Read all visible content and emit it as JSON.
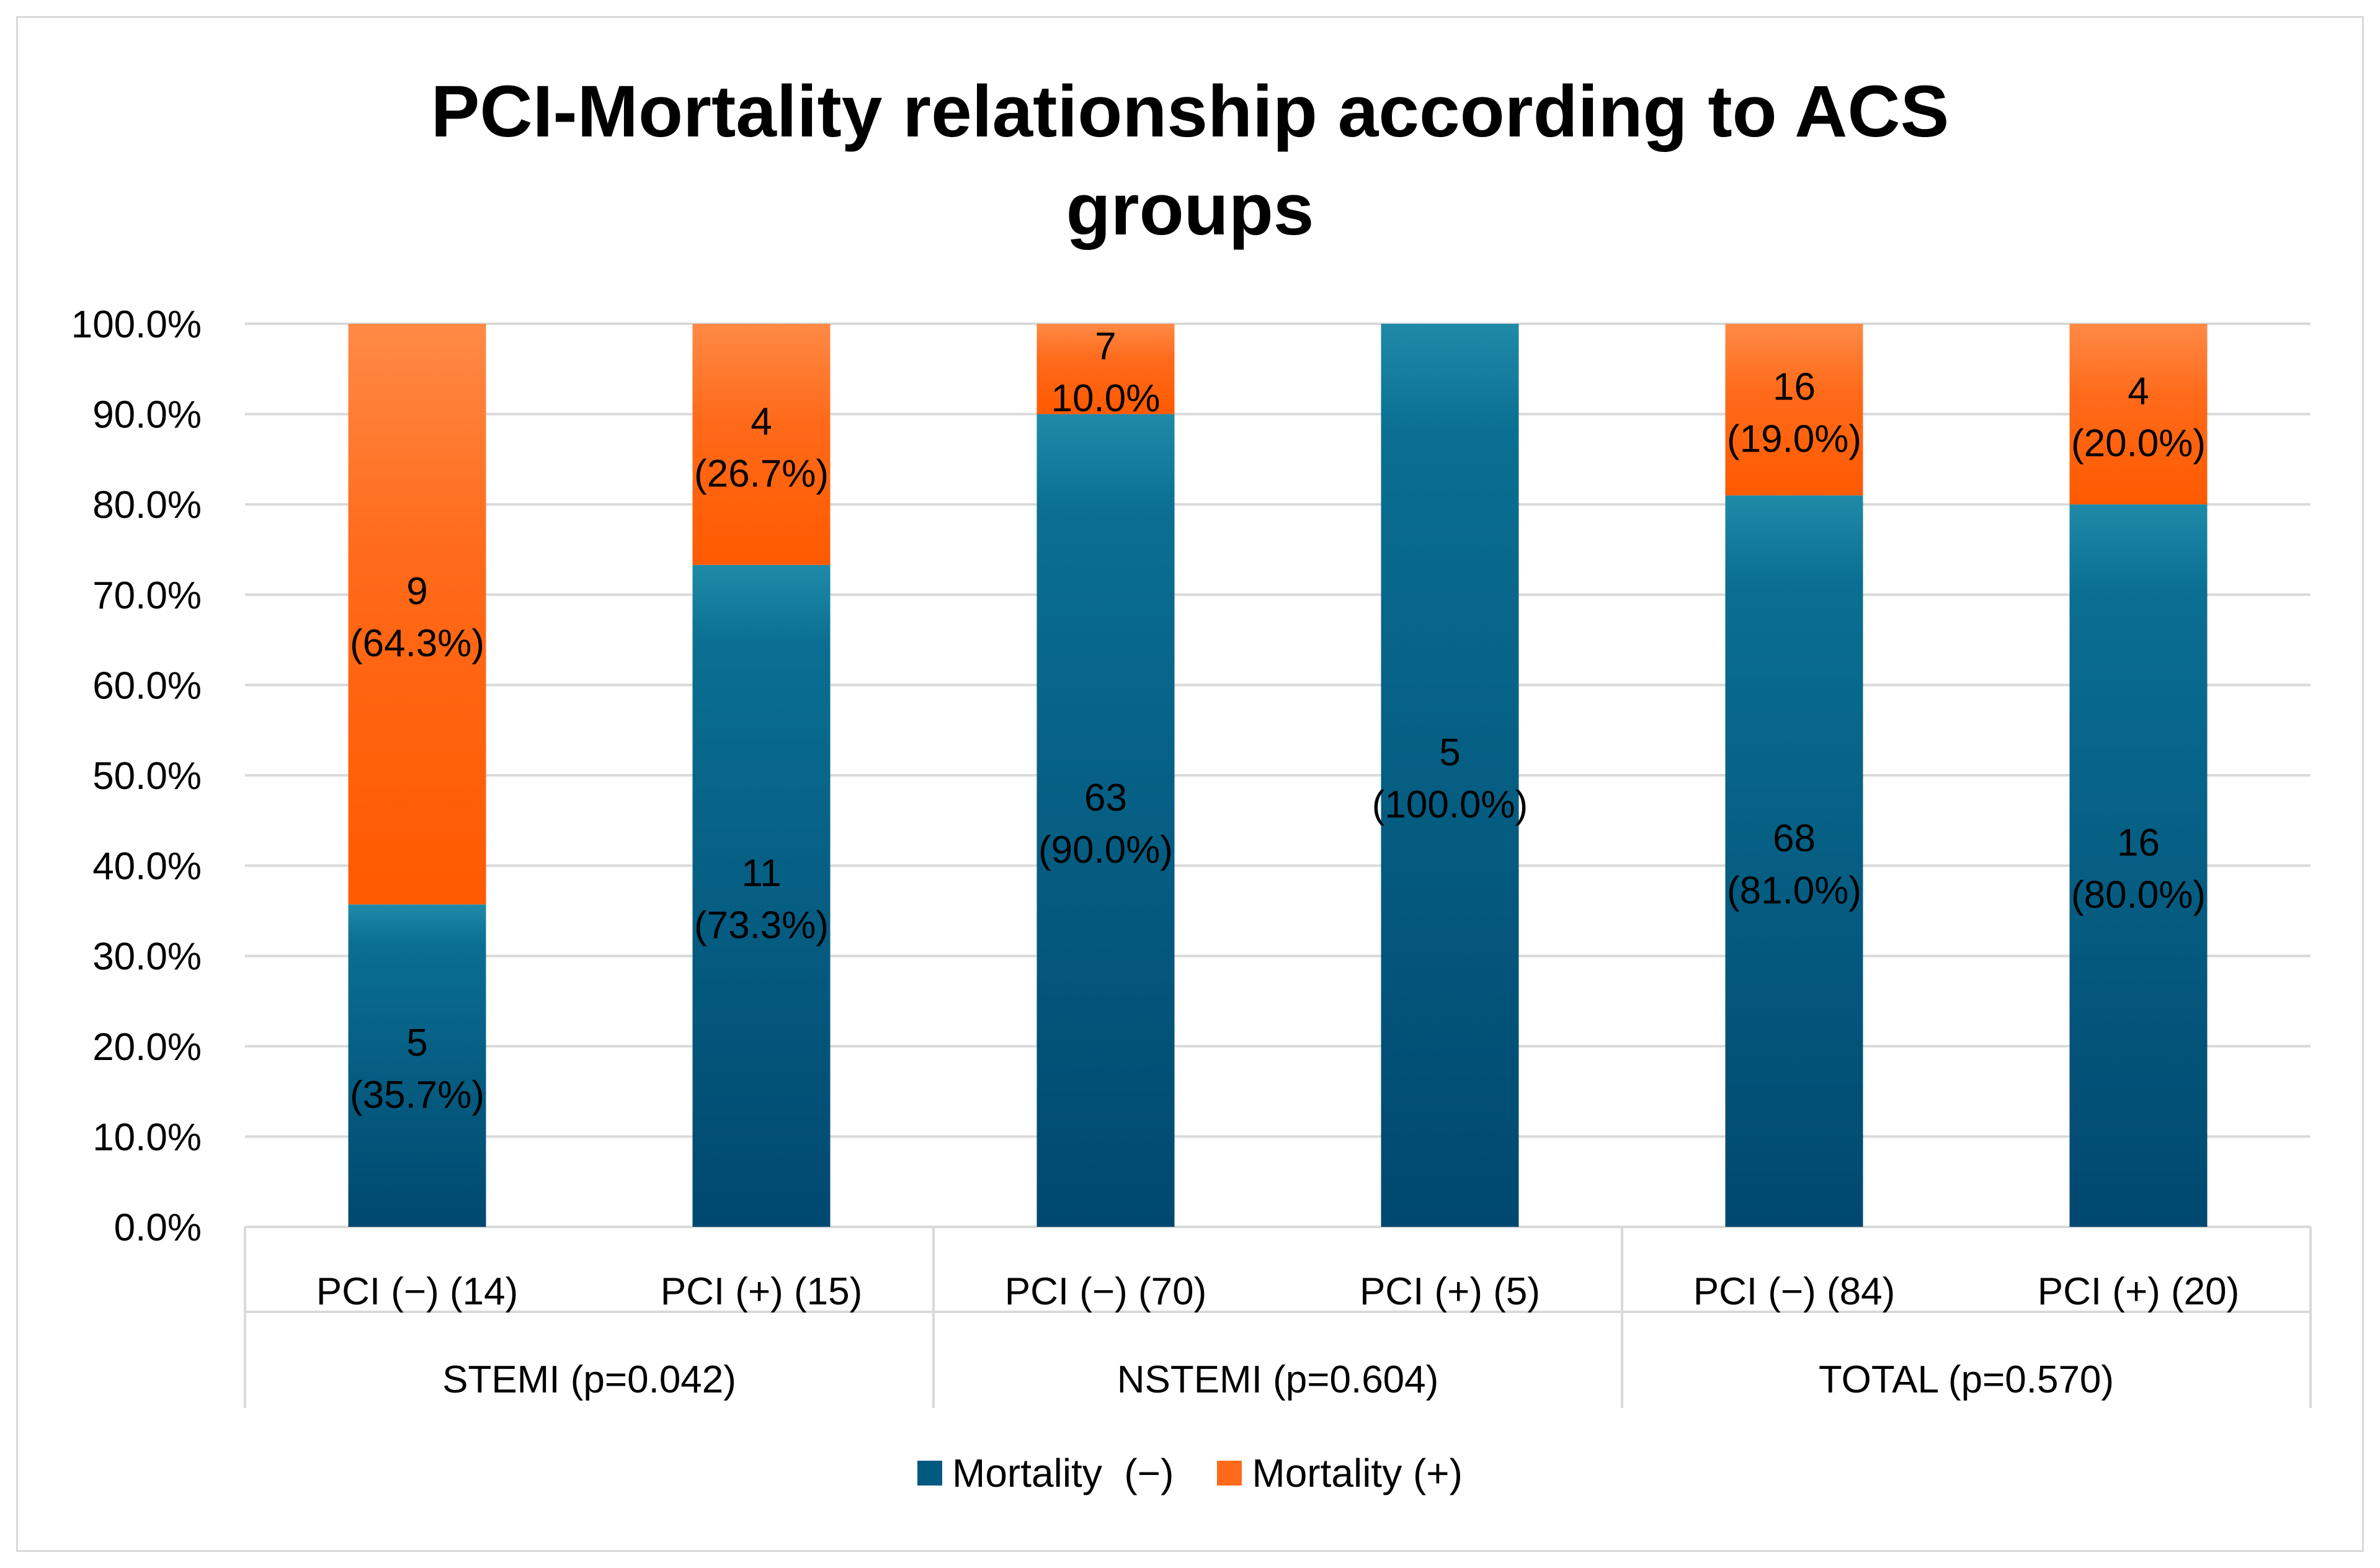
{
  "chart_data": {
    "type": "bar",
    "stacked": true,
    "title": "PCI-Mortality relationship according to ACS groups",
    "title_lines": [
      "PCI-Mortality relationship according to ACS",
      "groups"
    ],
    "categories": [
      "PCI (−) (14)",
      "PCI (+) (15)",
      "PCI (−) (70)",
      "PCI (+) (5)",
      "PCI (−) (84)",
      "PCI (+) (20)"
    ],
    "groups": [
      {
        "label": "STEMI (p=0.042)",
        "span": [
          0,
          1
        ]
      },
      {
        "label": "NSTEMI (p=0.604)",
        "span": [
          2,
          3
        ]
      },
      {
        "label": "TOTAL (p=0.570)",
        "span": [
          4,
          5
        ]
      }
    ],
    "series": [
      {
        "name": "Mortality  (−)",
        "color": "#005a80",
        "values": [
          35.7,
          73.3,
          90.0,
          100.0,
          81.0,
          80.0
        ],
        "counts": [
          5,
          11,
          63,
          5,
          68,
          16
        ],
        "pct_labels": [
          "(35.7%)",
          "(73.3%)",
          "(90.0%)",
          "(100.0%)",
          "(81.0%)",
          "(80.0%)"
        ]
      },
      {
        "name": "Mortality (+)",
        "color": "#ff6a1a",
        "values": [
          64.3,
          26.7,
          10.0,
          0.0,
          19.0,
          20.0
        ],
        "counts": [
          9,
          4,
          7,
          null,
          16,
          4
        ],
        "pct_labels": [
          "(64.3%)",
          "(26.7%)",
          "10.0%",
          "",
          "(19.0%)",
          "(20.0%)"
        ]
      }
    ],
    "y_ticks": [
      "0.0%",
      "10.0%",
      "20.0%",
      "30.0%",
      "40.0%",
      "50.0%",
      "60.0%",
      "70.0%",
      "80.0%",
      "90.0%",
      "100.0%"
    ],
    "ylim": [
      0,
      100
    ],
    "xlabel": "",
    "ylabel": "",
    "grid": true,
    "legend_position": "bottom"
  }
}
